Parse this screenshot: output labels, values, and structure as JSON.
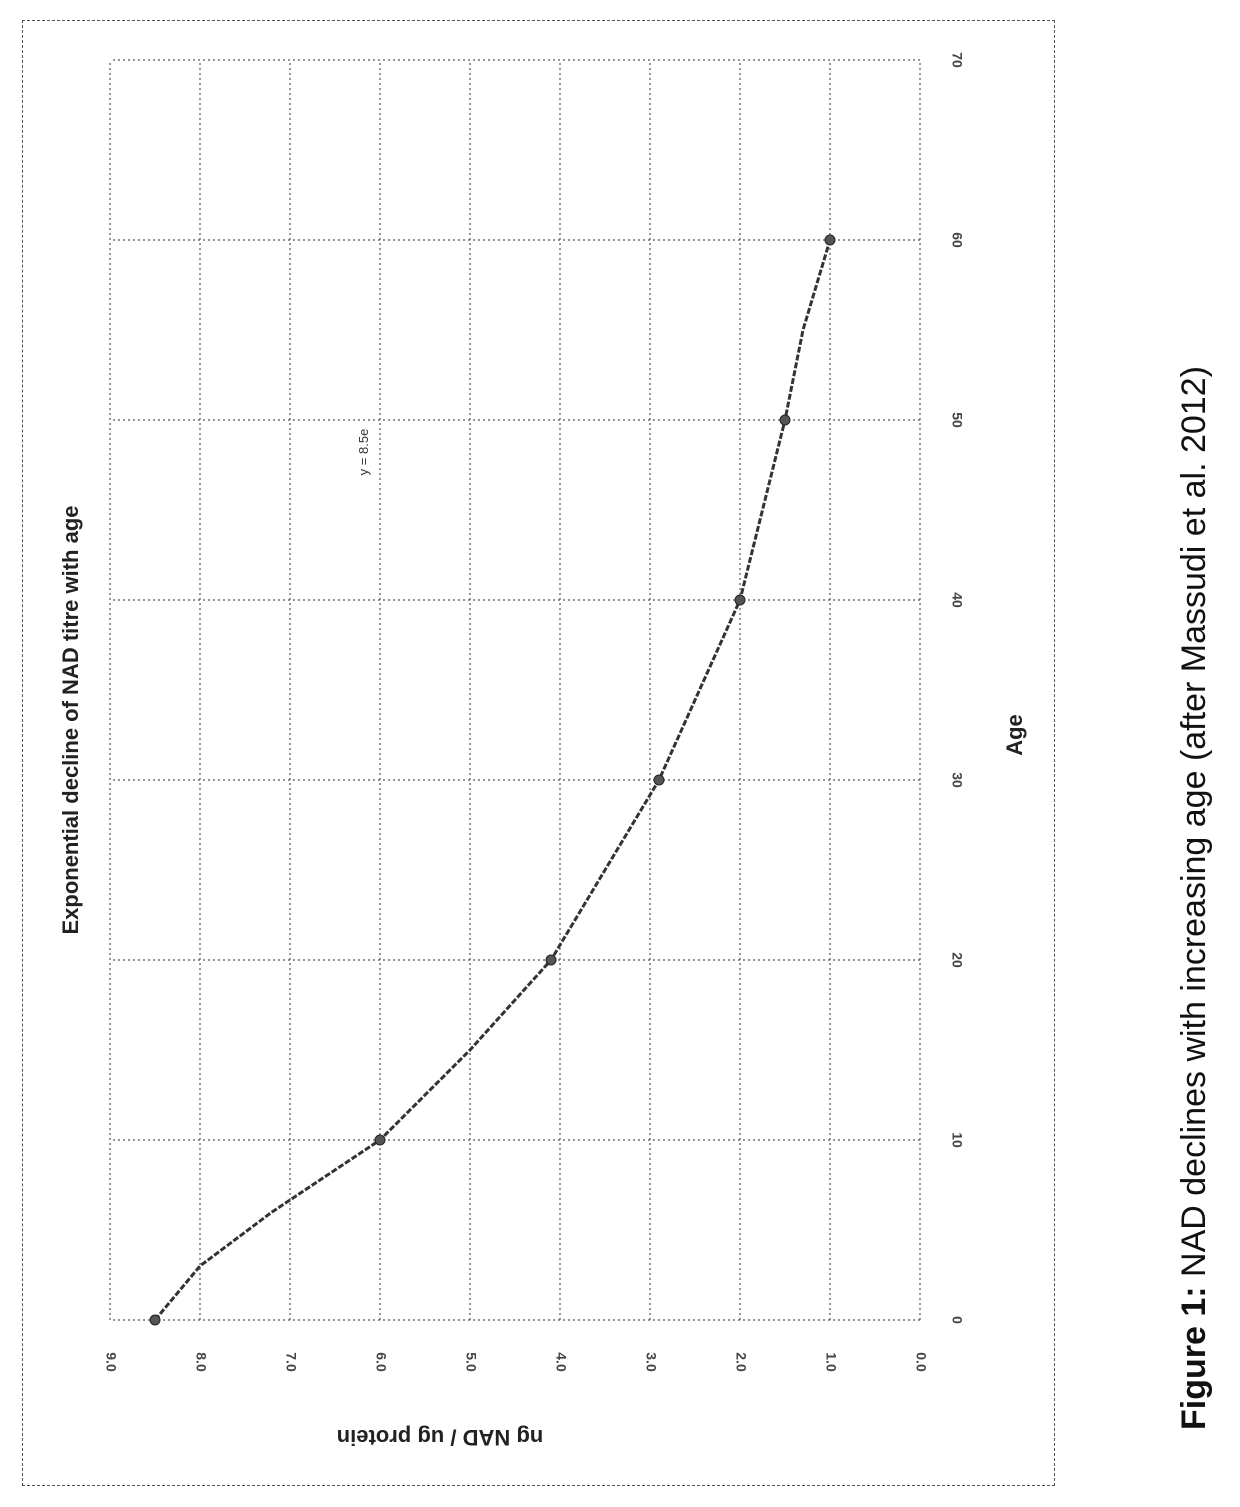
{
  "figure": {
    "caption_label": "Figure 1:",
    "caption_text": " NAD declines with increasing age (after Massudi et al. 2012)"
  },
  "chart_data": {
    "type": "line",
    "title": "Exponential decline of NAD titre with age",
    "xlabel": "Age",
    "ylabel": "ng NAD / ug protein",
    "equation": "y = 8.5e",
    "xlim": [
      0,
      90
    ],
    "ylim": [
      0,
      9
    ],
    "x_ticks": [
      "0",
      "10",
      "20",
      "30",
      "40",
      "50",
      "60",
      "70"
    ],
    "y_ticks": [
      "0.0",
      "1.0",
      "2.0",
      "3.0",
      "4.0",
      "5.0",
      "6.0",
      "7.0",
      "8.0",
      "9.0"
    ],
    "grid": true,
    "series": [
      {
        "x": [
          0,
          3,
          6,
          10,
          15,
          20,
          25,
          30,
          35,
          40,
          45,
          50,
          55,
          60
        ],
        "y": [
          8.5,
          8.0,
          7.2,
          6.0,
          5.0,
          4.1,
          3.5,
          2.9,
          2.45,
          2.0,
          1.75,
          1.5,
          1.3,
          1.0
        ]
      }
    ],
    "markers": {
      "x": [
        0,
        10,
        20,
        30,
        40,
        50,
        60
      ],
      "y": [
        8.5,
        6.0,
        4.1,
        2.9,
        2.0,
        1.5,
        1.0
      ]
    }
  }
}
